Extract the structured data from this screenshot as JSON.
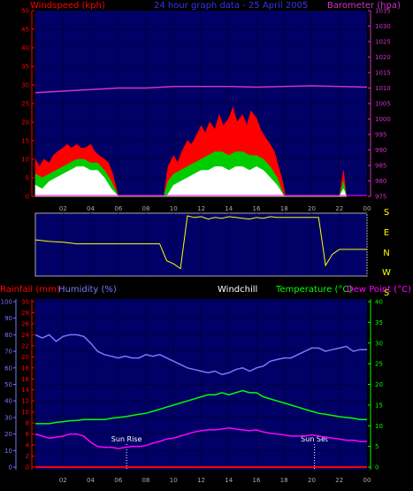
{
  "header": {
    "title": "24 hour graph data - 25 April 2005",
    "windspeed_label": "Windspeed (kph)",
    "barometer_label": "Barometer (hpa)"
  },
  "colors": {
    "plot_bg": "#000066",
    "wind_high": "#ff0000",
    "wind_mid": "#00cc00",
    "wind_low": "#ffffff",
    "barometer": "#cc33cc",
    "direction": "#ffff00",
    "humidity": "#7777ff",
    "temperature": "#00ff00",
    "dewpoint": "#ff00ff",
    "rainfall": "#ff0000",
    "windchill": "#ffffff"
  },
  "chart_data": [
    {
      "type": "area",
      "title": "24 hour graph data - 25 April 2005",
      "ylabel_left": "Windspeed (kph)",
      "ylabel_right": "Barometer (hpa)",
      "y_left_ticks": [
        "0",
        "5",
        "10",
        "15",
        "20",
        "25",
        "30",
        "35",
        "40",
        "45",
        "50"
      ],
      "y_right_ticks": [
        "975",
        "980",
        "985",
        "990",
        "995",
        "1000",
        "1005",
        "1010",
        "1015",
        "1020",
        "1025",
        "1030",
        "1035"
      ],
      "x_ticks": [
        "02",
        "04",
        "06",
        "08",
        "10",
        "12",
        "14",
        "16",
        "18",
        "20",
        "22",
        "00"
      ],
      "x_hours": [
        2,
        4,
        6,
        8,
        10,
        12,
        14,
        16,
        18,
        20,
        22,
        24
      ],
      "ylim_left": [
        0,
        50
      ],
      "ylim_right": [
        975,
        1035
      ],
      "series": [
        {
          "name": "gust",
          "x": [
            0,
            0.3,
            0.6,
            1,
            1.3,
            1.6,
            2,
            2.3,
            2.6,
            3,
            3.3,
            3.6,
            4,
            4.3,
            4.6,
            5,
            5.3,
            5.6,
            5.8,
            6,
            9.3,
            9.6,
            10,
            10.3,
            10.6,
            11,
            11.3,
            11.6,
            12,
            12.3,
            12.6,
            13,
            13.3,
            13.6,
            14,
            14.3,
            14.6,
            15,
            15.3,
            15.6,
            16,
            16.3,
            16.6,
            17,
            17.3,
            17.6,
            17.9,
            18.1,
            22,
            22.3,
            22.5
          ],
          "y": [
            10,
            8,
            10,
            9,
            11,
            12,
            13,
            14,
            13,
            14,
            13,
            13,
            14,
            12,
            11,
            10,
            9,
            6,
            3,
            0,
            0,
            8,
            11,
            9,
            12,
            15,
            14,
            16,
            19,
            17,
            20,
            18,
            22,
            19,
            21,
            24,
            20,
            22,
            19,
            23,
            21,
            18,
            16,
            14,
            12,
            8,
            4,
            0,
            0,
            7,
            0
          ]
        },
        {
          "name": "average",
          "x": [
            0,
            0.5,
            1,
            1.5,
            2,
            2.5,
            3,
            3.5,
            4,
            4.5,
            5,
            5.5,
            6,
            9.3,
            9.6,
            10,
            10.5,
            11,
            11.5,
            12,
            12.5,
            13,
            13.5,
            14,
            14.5,
            15,
            15.5,
            16,
            16.5,
            17,
            17.5,
            18,
            22,
            22.3,
            22.5
          ],
          "y": [
            6,
            5,
            6,
            7,
            8,
            9,
            10,
            10,
            9,
            9,
            7,
            4,
            0,
            0,
            4,
            6,
            7,
            8,
            9,
            10,
            11,
            12,
            12,
            11,
            12,
            12,
            11,
            11,
            10,
            8,
            5,
            0,
            0,
            4,
            0
          ]
        },
        {
          "name": "low",
          "x": [
            0,
            0.5,
            1,
            1.5,
            2,
            2.5,
            3,
            3.5,
            4,
            4.5,
            5,
            5.5,
            6,
            9.5,
            10,
            10.5,
            11,
            11.5,
            12,
            12.5,
            13,
            13.5,
            14,
            14.5,
            15,
            15.5,
            16,
            16.5,
            17,
            17.5,
            18,
            22,
            22.3,
            22.5
          ],
          "y": [
            3,
            2,
            4,
            5,
            6,
            7,
            8,
            8,
            7,
            7,
            5,
            2,
            0,
            0,
            3,
            4,
            5,
            6,
            7,
            7,
            8,
            8,
            7,
            8,
            8,
            7,
            8,
            7,
            5,
            3,
            0,
            0,
            2,
            0
          ]
        },
        {
          "name": "barometer",
          "x": [
            0,
            2,
            4,
            6,
            8,
            10,
            12,
            14,
            16,
            18,
            20,
            22,
            24
          ],
          "y": [
            1008.5,
            1009,
            1009.5,
            1010,
            1010,
            1010.5,
            1010.5,
            1010.5,
            1010.3,
            1010.5,
            1010.7,
            1010.5,
            1010.3
          ]
        }
      ]
    },
    {
      "type": "line",
      "title": "Wind direction",
      "y_ticks": [
        "S",
        "E",
        "N",
        "W",
        "S"
      ],
      "x_hours": [
        2,
        4,
        6,
        8,
        10,
        12,
        14,
        16,
        18,
        20,
        22,
        24
      ],
      "series": [
        {
          "name": "direction",
          "x": [
            0,
            1,
            2,
            3,
            4,
            5,
            6,
            7,
            8,
            8.5,
            9,
            9.5,
            10,
            10.5,
            11,
            11.5,
            12,
            12.5,
            13,
            13.5,
            14,
            14.5,
            15,
            15.5,
            16,
            16.5,
            17,
            17.5,
            18,
            18.5,
            19,
            19.5,
            20,
            20.5,
            21,
            21.5,
            22,
            22.5,
            23,
            24
          ],
          "y": [
            210,
            200,
            195,
            185,
            185,
            185,
            185,
            185,
            185,
            185,
            185,
            80,
            60,
            30,
            360,
            350,
            355,
            340,
            350,
            345,
            355,
            350,
            345,
            340,
            350,
            345,
            355,
            350,
            350,
            350,
            350,
            350,
            350,
            350,
            50,
            120,
            150,
            150,
            150,
            150
          ]
        }
      ]
    },
    {
      "type": "line",
      "title": "",
      "labels": [
        "Rainfall (mm)",
        "Humidity (%)",
        "Windchill",
        "Temperature (°C)",
        "Dew Point (°C)"
      ],
      "y_rain_ticks": [
        "0",
        "2",
        "4",
        "6",
        "8",
        "10",
        "12",
        "14",
        "16",
        "18",
        "20",
        "22",
        "24",
        "26",
        "28",
        "30"
      ],
      "y_humidity_ticks": [
        "0",
        "10",
        "20",
        "30",
        "40",
        "50",
        "60",
        "70",
        "80",
        "90",
        "100"
      ],
      "y_temp_ticks": [
        "0",
        "5",
        "10",
        "15",
        "20",
        "25",
        "30",
        "35",
        "40"
      ],
      "x_ticks": [
        "02",
        "04",
        "06",
        "08",
        "10",
        "12",
        "14",
        "16",
        "18",
        "20",
        "22",
        "00"
      ],
      "x_hours": [
        2,
        4,
        6,
        8,
        10,
        12,
        14,
        16,
        18,
        20,
        22,
        24
      ],
      "ylim_humidity": [
        0,
        100
      ],
      "ylim_temp": [
        0,
        40
      ],
      "annotations": [
        {
          "label": "Sun Rise",
          "x": 6.6
        },
        {
          "label": "Sun Set",
          "x": 20.2
        }
      ],
      "series": [
        {
          "name": "Humidity (%)",
          "x": [
            0,
            0.5,
            1,
            1.5,
            2,
            2.5,
            3,
            3.5,
            4,
            4.5,
            5,
            5.5,
            6,
            6.5,
            7,
            7.5,
            8,
            8.5,
            9,
            9.5,
            10,
            10.5,
            11,
            11.5,
            12,
            12.5,
            13,
            13.5,
            14,
            14.5,
            15,
            15.5,
            16,
            16.5,
            17,
            17.5,
            18,
            18.5,
            19,
            19.5,
            20,
            20.5,
            21,
            21.5,
            22,
            22.5,
            23,
            23.5,
            24
          ],
          "y": [
            80,
            78,
            80,
            76,
            79,
            80,
            80,
            79,
            75,
            70,
            68,
            67,
            66,
            67,
            66,
            66,
            68,
            67,
            68,
            66,
            64,
            62,
            60,
            59,
            58,
            57,
            58,
            56,
            57,
            59,
            60,
            58,
            60,
            61,
            64,
            65,
            66,
            66,
            68,
            70,
            72,
            72,
            70,
            71,
            72,
            73,
            70,
            71,
            71
          ]
        },
        {
          "name": "Temperature (°C)",
          "x": [
            0,
            0.5,
            1,
            1.5,
            2,
            2.5,
            3,
            3.5,
            4,
            4.5,
            5,
            5.5,
            6,
            6.5,
            7,
            7.5,
            8,
            8.5,
            9,
            9.5,
            10,
            10.5,
            11,
            11.5,
            12,
            12.5,
            13,
            13.5,
            14,
            14.5,
            15,
            15.5,
            16,
            16.5,
            17,
            17.5,
            18,
            18.5,
            19,
            19.5,
            20,
            20.5,
            21,
            21.5,
            22,
            22.5,
            23,
            23.5,
            24
          ],
          "y": [
            10.5,
            10.5,
            10.5,
            10.8,
            11,
            11.2,
            11.3,
            11.5,
            11.5,
            11.5,
            11.5,
            11.8,
            12,
            12.2,
            12.5,
            12.8,
            13,
            13.5,
            14,
            14.5,
            15,
            15.5,
            16,
            16.5,
            17,
            17.5,
            17.5,
            18,
            17.5,
            18,
            18.5,
            18,
            18,
            17,
            16.5,
            16,
            15.5,
            15,
            14.5,
            14,
            13.5,
            13,
            12.8,
            12.5,
            12.2,
            12,
            11.8,
            11.5,
            11.5
          ]
        },
        {
          "name": "Dew Point (°C)",
          "x": [
            0,
            0.5,
            1,
            1.5,
            2,
            2.5,
            3,
            3.5,
            4,
            4.5,
            5,
            5.5,
            6,
            6.5,
            7,
            7.5,
            8,
            8.5,
            9,
            9.5,
            10,
            10.5,
            11,
            11.5,
            12,
            12.5,
            13,
            13.5,
            14,
            14.5,
            15,
            15.5,
            16,
            16.5,
            17,
            17.5,
            18,
            18.5,
            19,
            19.5,
            20,
            20.5,
            21,
            21.5,
            22,
            22.5,
            23,
            23.5,
            24
          ],
          "y": [
            8,
            7.5,
            7,
            7.2,
            7.5,
            8,
            8,
            7.5,
            6,
            5,
            4.8,
            4.8,
            4.5,
            4.8,
            5,
            5,
            5.2,
            5.8,
            6.2,
            6.8,
            7,
            7.5,
            8,
            8.5,
            8.8,
            9,
            9,
            9.2,
            9.5,
            9.2,
            9,
            8.8,
            9,
            8.5,
            8.2,
            8,
            7.8,
            7.5,
            7.5,
            7.5,
            7.8,
            7.5,
            7.2,
            7,
            6.8,
            6.5,
            6.5,
            6.2,
            6.2
          ]
        },
        {
          "name": "Rainfall (mm)",
          "x": [
            0,
            24
          ],
          "y": [
            0,
            0
          ]
        }
      ]
    }
  ]
}
